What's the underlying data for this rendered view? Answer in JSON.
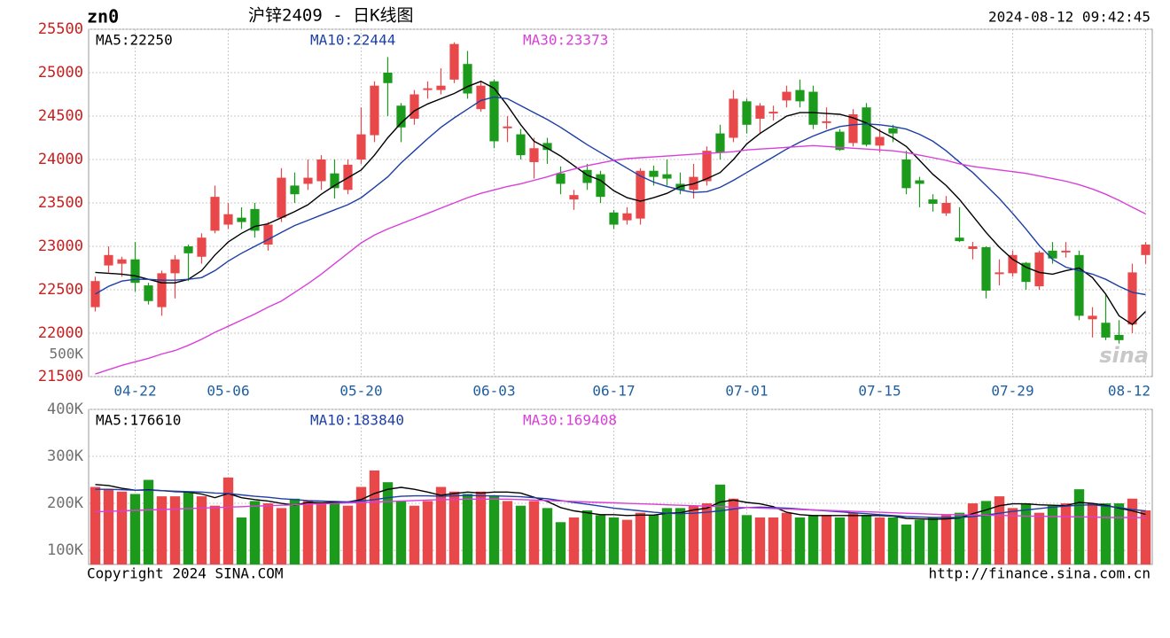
{
  "header": {
    "symbol": "zn0",
    "title": "沪锌2409 - 日K线图",
    "timestamp": "2024-08-12 09:42:45"
  },
  "footer": {
    "copyright": "Copyright 2024 SINA.COM",
    "url": "http://finance.sina.com.cn"
  },
  "chart_data": [
    {
      "type": "candlestick",
      "up_color": "#e8484a",
      "down_color": "#1c9a1c",
      "annotations": [
        "500K",
        "sina"
      ],
      "ylim": [
        21500,
        25500
      ],
      "yticks": [
        21500,
        22000,
        22500,
        23000,
        23500,
        24000,
        24500,
        25000,
        25500
      ],
      "grid": true,
      "categories": [
        null,
        null,
        null,
        "04-22",
        null,
        null,
        null,
        null,
        null,
        null,
        "05-06",
        null,
        null,
        null,
        null,
        null,
        null,
        null,
        null,
        null,
        "05-20",
        null,
        null,
        null,
        null,
        null,
        null,
        null,
        null,
        null,
        "06-03",
        null,
        null,
        null,
        null,
        null,
        null,
        null,
        null,
        "06-17",
        null,
        null,
        null,
        null,
        null,
        null,
        null,
        null,
        null,
        "07-01",
        null,
        null,
        null,
        null,
        null,
        null,
        null,
        null,
        null,
        "07-15",
        null,
        null,
        null,
        null,
        null,
        null,
        null,
        null,
        null,
        "07-29",
        null,
        null,
        null,
        null,
        null,
        null,
        null,
        null,
        null,
        "08-12"
      ],
      "open": [
        22300,
        22780,
        22800,
        22850,
        22550,
        22300,
        22690,
        23000,
        22880,
        23180,
        23250,
        23330,
        23430,
        23020,
        23330,
        23700,
        23720,
        23750,
        23840,
        23650,
        24000,
        24280,
        25000,
        24620,
        24470,
        24800,
        24800,
        24920,
        25100,
        24580,
        24900,
        24360,
        24290,
        23970,
        24190,
        23840,
        23540,
        23880,
        23830,
        23390,
        23300,
        23320,
        23870,
        23830,
        23720,
        23650,
        23750,
        24300,
        24250,
        24670,
        24470,
        24530,
        24680,
        24800,
        24780,
        24420,
        24320,
        24190,
        24600,
        24160,
        24360,
        24000,
        23760,
        23540,
        23380,
        23100,
        22970,
        22990,
        22680,
        22690,
        22810,
        22540,
        22950,
        22930,
        22900,
        22160,
        22120,
        21980,
        22100,
        22900
      ],
      "high": [
        22650,
        23000,
        22880,
        23050,
        22580,
        22720,
        22900,
        23020,
        23150,
        23700,
        23500,
        23450,
        23500,
        23280,
        23900,
        23850,
        24000,
        24050,
        24000,
        24000,
        24600,
        24900,
        25180,
        24650,
        24800,
        24900,
        25050,
        25350,
        25250,
        24900,
        24920,
        24500,
        24350,
        24250,
        24250,
        23920,
        23650,
        23950,
        23870,
        23420,
        23450,
        23900,
        23930,
        24000,
        23850,
        23950,
        24150,
        24400,
        24800,
        24700,
        24650,
        24620,
        24850,
        24920,
        24850,
        24600,
        24350,
        24580,
        24650,
        24350,
        24400,
        24100,
        23800,
        23600,
        23580,
        23450,
        23050,
        23000,
        22850,
        22950,
        22820,
        22950,
        23050,
        23050,
        22950,
        22300,
        22450,
        22150,
        22800,
        23050
      ],
      "low": [
        22250,
        22700,
        22650,
        22480,
        22330,
        22200,
        22400,
        22600,
        22800,
        23150,
        23200,
        23200,
        23100,
        22950,
        23280,
        23500,
        23650,
        23650,
        23550,
        23600,
        23950,
        24200,
        24500,
        24200,
        24400,
        24700,
        24750,
        24880,
        24700,
        24550,
        24130,
        24200,
        24000,
        23780,
        23950,
        23600,
        23420,
        23650,
        23500,
        23200,
        23250,
        23250,
        23700,
        23700,
        23600,
        23550,
        23700,
        24000,
        24200,
        24300,
        24300,
        24450,
        24600,
        24600,
        24350,
        24350,
        24100,
        24150,
        24150,
        24080,
        24200,
        23600,
        23450,
        23400,
        23350,
        23050,
        22850,
        22400,
        22550,
        22650,
        22500,
        22500,
        22800,
        22870,
        22150,
        21950,
        21920,
        21880,
        22000,
        22800
      ],
      "close": [
        22600,
        22900,
        22850,
        22580,
        22370,
        22690,
        22850,
        22920,
        23100,
        23570,
        23370,
        23280,
        23180,
        23250,
        23790,
        23600,
        23790,
        24000,
        23670,
        23940,
        24290,
        24850,
        24880,
        24370,
        24750,
        24820,
        24850,
        25330,
        24760,
        24850,
        24210,
        24380,
        24050,
        24130,
        24110,
        23720,
        23590,
        23730,
        23570,
        23250,
        23380,
        23870,
        23800,
        23780,
        23650,
        23800,
        24100,
        24080,
        24700,
        24400,
        24620,
        24550,
        24780,
        24670,
        24400,
        24440,
        24110,
        24520,
        24170,
        24260,
        24300,
        23670,
        23720,
        23490,
        23500,
        23060,
        23000,
        22490,
        22700,
        22900,
        22590,
        22930,
        22860,
        22950,
        22200,
        22200,
        21950,
        21920,
        22700,
        23020
      ],
      "ma": [
        {
          "label": "MA5:22250",
          "color": "#000000",
          "values": [
            22700,
            22690,
            22680,
            22660,
            22620,
            22580,
            22580,
            22620,
            22720,
            22900,
            23050,
            23150,
            23230,
            23260,
            23330,
            23400,
            23480,
            23600,
            23700,
            23790,
            23880,
            24050,
            24250,
            24420,
            24560,
            24640,
            24700,
            24760,
            24840,
            24900,
            24820,
            24620,
            24400,
            24210,
            24130,
            24040,
            23930,
            23820,
            23760,
            23640,
            23560,
            23520,
            23560,
            23610,
            23690,
            23720,
            23780,
            23850,
            24000,
            24180,
            24300,
            24400,
            24500,
            24540,
            24540,
            24530,
            24520,
            24480,
            24420,
            24330,
            24250,
            24150,
            23990,
            23830,
            23700,
            23540,
            23350,
            23160,
            22990,
            22850,
            22760,
            22700,
            22680,
            22720,
            22750,
            22640,
            22450,
            22200,
            22100,
            22250
          ]
        },
        {
          "label": "MA10:22444",
          "color": "#1d3fa6",
          "values": [
            22450,
            22540,
            22600,
            22620,
            22620,
            22610,
            22610,
            22620,
            22640,
            22720,
            22830,
            22920,
            23000,
            23080,
            23160,
            23240,
            23300,
            23360,
            23420,
            23480,
            23560,
            23680,
            23800,
            23960,
            24100,
            24240,
            24370,
            24480,
            24580,
            24680,
            24720,
            24700,
            24620,
            24540,
            24460,
            24370,
            24270,
            24170,
            24080,
            23990,
            23900,
            23810,
            23740,
            23690,
            23650,
            23620,
            23630,
            23680,
            23760,
            23850,
            23940,
            24030,
            24120,
            24200,
            24270,
            24330,
            24380,
            24400,
            24410,
            24400,
            24380,
            24350,
            24290,
            24210,
            24100,
            23970,
            23850,
            23700,
            23550,
            23380,
            23200,
            23010,
            22850,
            22760,
            22720,
            22680,
            22620,
            22540,
            22470,
            22444
          ]
        },
        {
          "label": "MA30:23373",
          "color": "#d93fd9",
          "values": [
            21530,
            21580,
            21630,
            21670,
            21710,
            21760,
            21800,
            21860,
            21930,
            22010,
            22080,
            22150,
            22220,
            22300,
            22370,
            22470,
            22570,
            22680,
            22800,
            22920,
            23040,
            23130,
            23200,
            23260,
            23320,
            23380,
            23440,
            23500,
            23560,
            23610,
            23650,
            23690,
            23720,
            23760,
            23800,
            23850,
            23890,
            23930,
            23960,
            23990,
            24010,
            24020,
            24030,
            24040,
            24050,
            24060,
            24070,
            24080,
            24090,
            24110,
            24120,
            24130,
            24140,
            24150,
            24160,
            24150,
            24140,
            24130,
            24120,
            24110,
            24100,
            24080,
            24050,
            24020,
            23990,
            23950,
            23920,
            23900,
            23880,
            23860,
            23840,
            23810,
            23780,
            23750,
            23710,
            23660,
            23600,
            23530,
            23450,
            23373
          ]
        }
      ]
    },
    {
      "type": "volume",
      "ylim": [
        70000,
        400000
      ],
      "yticks": [
        {
          "value": 100000,
          "label": "100K"
        },
        {
          "value": 200000,
          "label": "200K"
        },
        {
          "value": 300000,
          "label": "300K"
        },
        {
          "value": 400000,
          "label": "400K"
        }
      ],
      "grid": true,
      "values": [
        235000,
        230000,
        225000,
        220000,
        250000,
        215000,
        215000,
        225000,
        215000,
        195000,
        255000,
        170000,
        205000,
        200000,
        190000,
        210000,
        205000,
        200000,
        205000,
        195000,
        235000,
        270000,
        245000,
        205000,
        195000,
        205000,
        235000,
        225000,
        220000,
        225000,
        215000,
        205000,
        195000,
        205000,
        190000,
        160000,
        170000,
        185000,
        175000,
        170000,
        165000,
        180000,
        175000,
        190000,
        190000,
        195000,
        200000,
        240000,
        210000,
        175000,
        170000,
        170000,
        180000,
        170000,
        175000,
        175000,
        170000,
        180000,
        175000,
        170000,
        170000,
        155000,
        165000,
        170000,
        175000,
        180000,
        200000,
        205000,
        215000,
        190000,
        200000,
        180000,
        195000,
        200000,
        230000,
        200000,
        200000,
        200000,
        210000,
        185000
      ],
      "ma": [
        {
          "label": "MA5:176610",
          "color": "#000000",
          "values": [
            240000,
            238000,
            232000,
            228000,
            229000,
            227000,
            225000,
            224000,
            220000,
            212000,
            221000,
            212000,
            208000,
            205000,
            200000,
            196000,
            202000,
            201000,
            202000,
            203000,
            208000,
            221000,
            230000,
            234000,
            230000,
            224000,
            217000,
            221000,
            224000,
            222000,
            224000,
            224000,
            222000,
            213000,
            204000,
            191000,
            184000,
            180000,
            176000,
            176000,
            174000,
            175000,
            175000,
            179000,
            180000,
            186000,
            190000,
            203000,
            207000,
            202000,
            199000,
            193000,
            181000,
            176000,
            174000,
            174000,
            174000,
            174000,
            174000,
            174000,
            173000,
            168000,
            167000,
            166000,
            167000,
            169000,
            178000,
            186000,
            195000,
            199000,
            199000,
            197000,
            196000,
            195000,
            202000,
            200000,
            196000,
            190000,
            184000,
            176610
          ]
        },
        {
          "label": "MA10:183840",
          "color": "#1d3fa6",
          "values": [
            230000,
            230000,
            229000,
            228000,
            228000,
            227000,
            226000,
            225000,
            224000,
            222000,
            221000,
            218000,
            215000,
            213000,
            210000,
            208000,
            206000,
            205000,
            204000,
            203000,
            205000,
            208000,
            212000,
            215000,
            216000,
            216000,
            215000,
            216000,
            217000,
            216000,
            216000,
            215000,
            214000,
            212000,
            210000,
            206000,
            202000,
            198000,
            194000,
            190000,
            187000,
            184000,
            181000,
            179000,
            178000,
            179000,
            181000,
            184000,
            188000,
            191000,
            192000,
            191000,
            190000,
            188000,
            186000,
            184000,
            182000,
            180000,
            178000,
            176000,
            174000,
            172000,
            171000,
            170000,
            170000,
            170000,
            172000,
            175000,
            179000,
            183000,
            186000,
            189000,
            192000,
            194000,
            196000,
            197000,
            194000,
            191000,
            187000,
            183840
          ]
        },
        {
          "label": "MA30:169408",
          "color": "#d93fd9",
          "values": [
            182000,
            183000,
            184000,
            185000,
            186000,
            187000,
            188000,
            189000,
            190000,
            191000,
            192000,
            193000,
            194000,
            195000,
            196000,
            197000,
            198000,
            199000,
            200000,
            201000,
            202000,
            203000,
            204000,
            205000,
            206000,
            207000,
            208000,
            208000,
            209000,
            209000,
            209000,
            209000,
            208000,
            207000,
            206000,
            205000,
            204000,
            203000,
            202000,
            201000,
            200000,
            199000,
            198000,
            197000,
            196000,
            195000,
            194000,
            193000,
            192000,
            191000,
            190000,
            189000,
            188000,
            187000,
            186000,
            185000,
            184000,
            183000,
            182000,
            181000,
            180000,
            179000,
            178000,
            177000,
            176000,
            176000,
            175000,
            175000,
            174000,
            174000,
            173000,
            173000,
            172000,
            172000,
            171000,
            171000,
            170000,
            170000,
            170000,
            169408
          ]
        }
      ]
    }
  ]
}
